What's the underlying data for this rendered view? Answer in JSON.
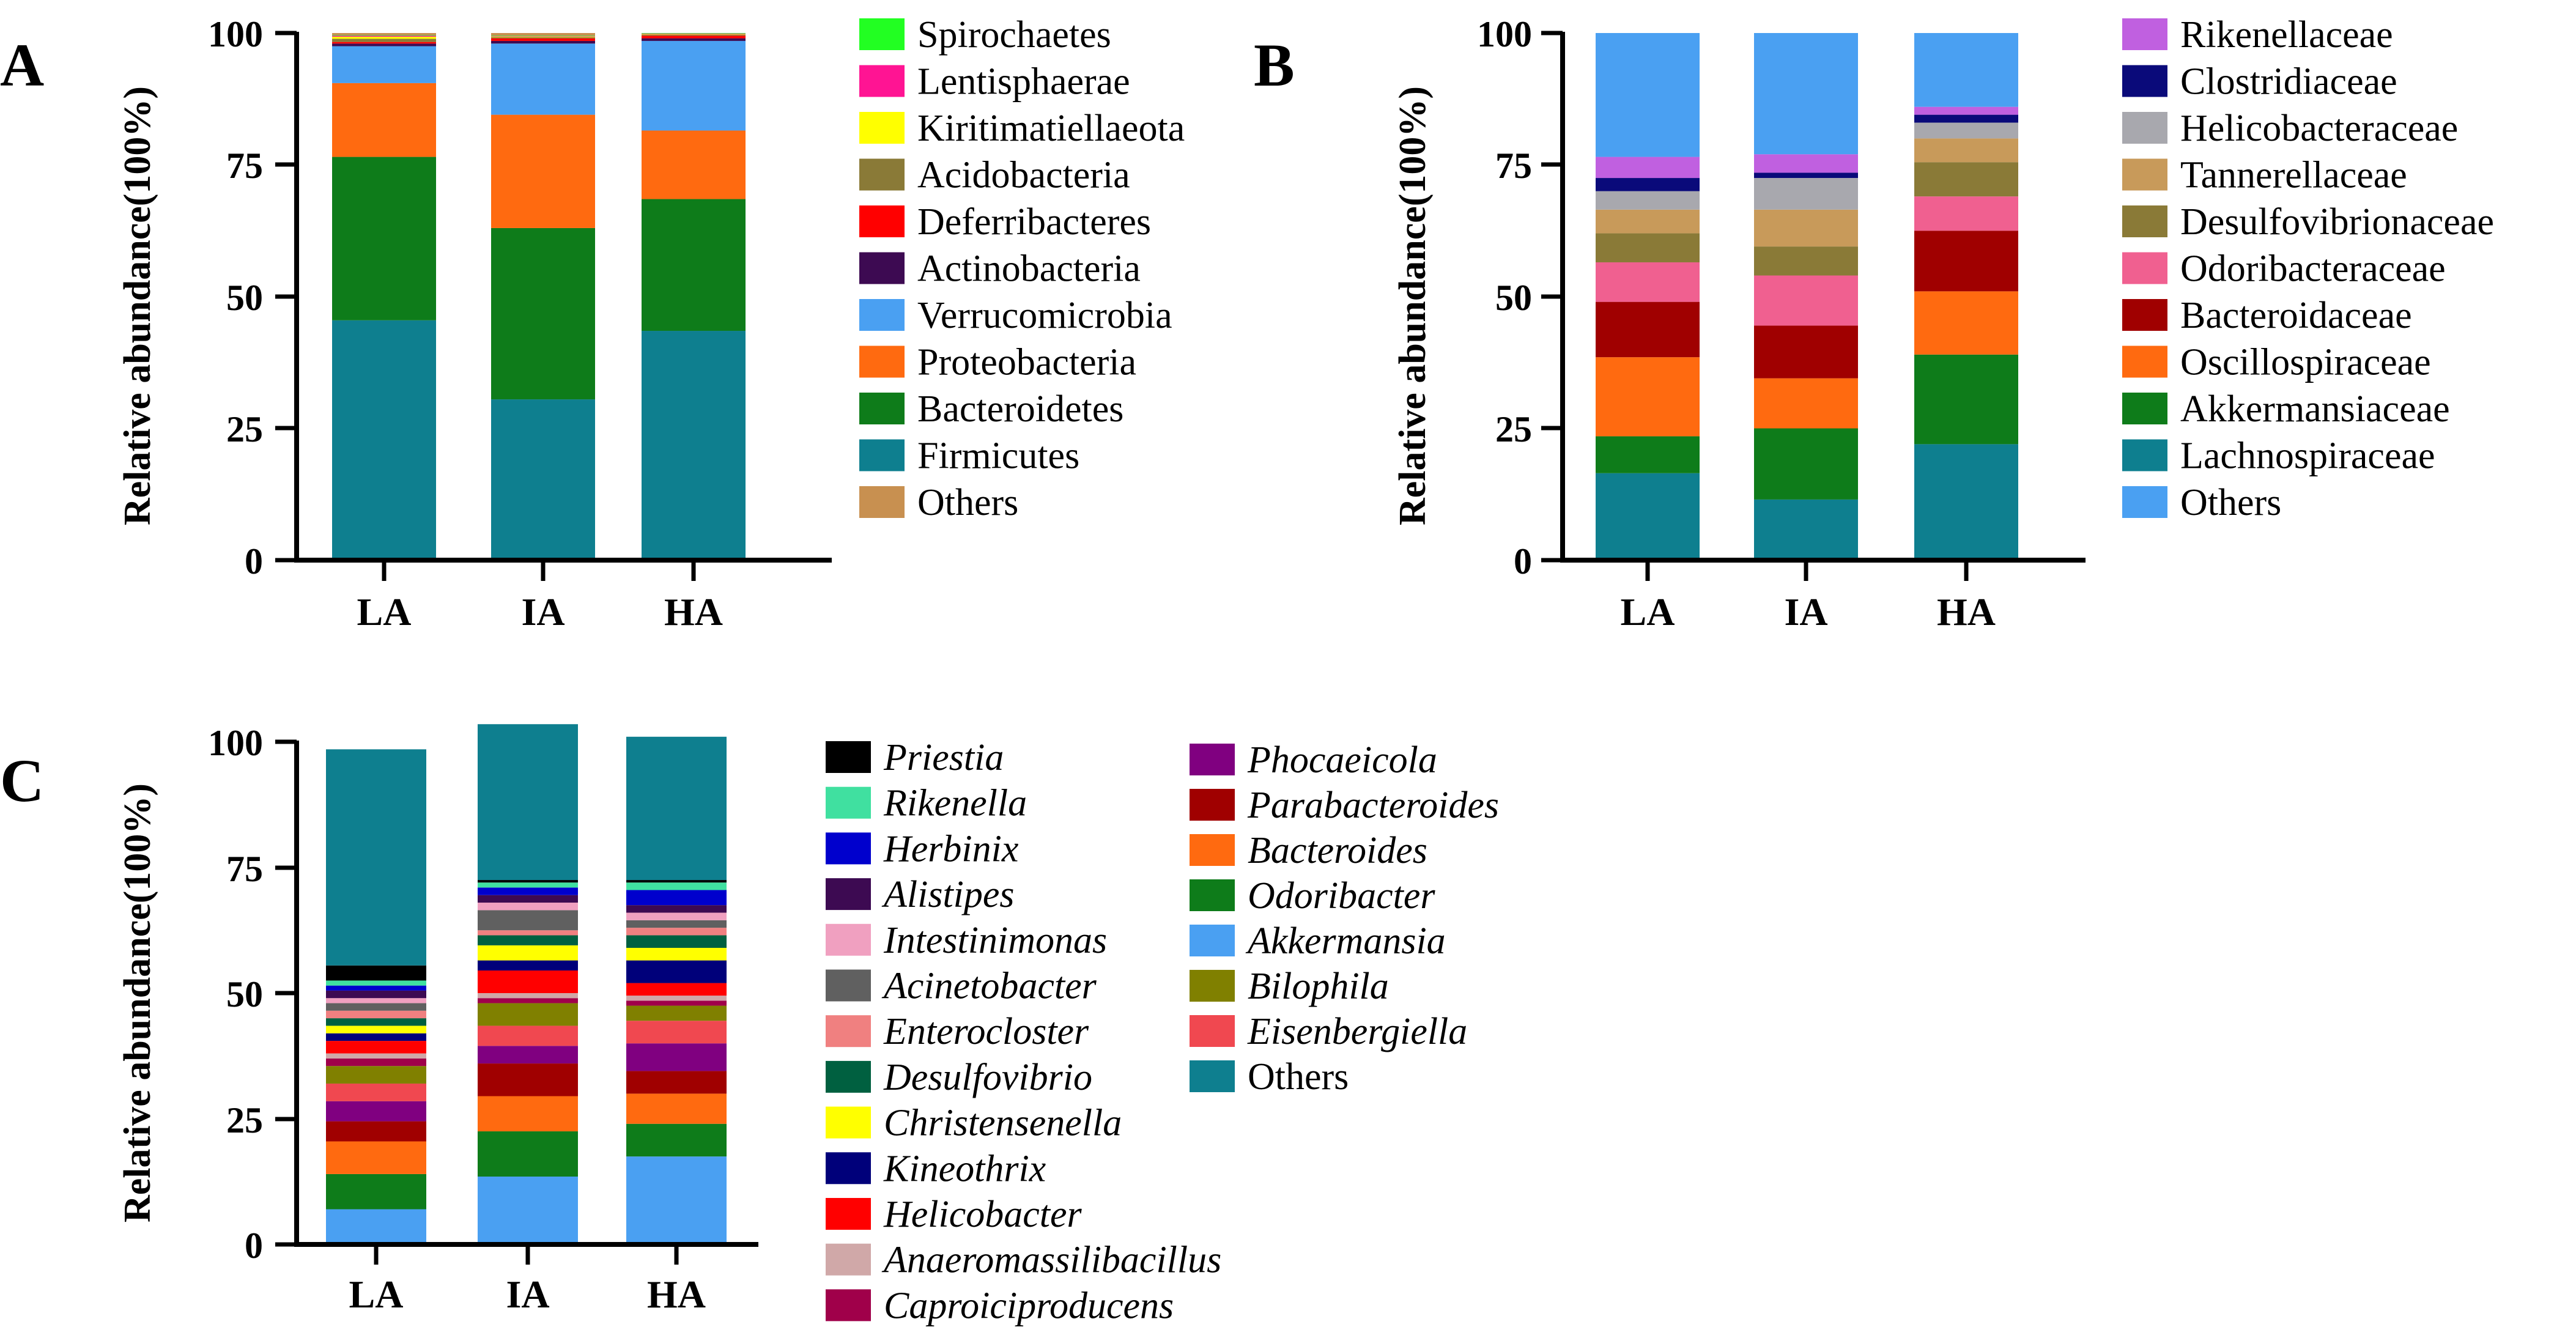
{
  "chart_data": [
    {
      "panel": "A",
      "type": "bar",
      "stacked": true,
      "categories": [
        "LA",
        "IA",
        "HA"
      ],
      "ylabel": "Relative abundance(100%)",
      "xlabel": "",
      "ylim": [
        0,
        100
      ],
      "yticks": [
        "0",
        "25",
        "50",
        "75",
        "100"
      ],
      "legend_italic": false,
      "series": [
        {
          "name": "Firmicutes",
          "color": "#0e7f8f",
          "values": [
            45.5,
            30.5,
            43.5
          ]
        },
        {
          "name": "Bacteroidetes",
          "color": "#0e7c1a",
          "values": [
            31.0,
            32.5,
            25.0
          ]
        },
        {
          "name": "Proteobacteria",
          "color": "#ff6a10",
          "values": [
            14.0,
            21.5,
            13.0
          ]
        },
        {
          "name": "Verrucomicrobia",
          "color": "#4aa0f2",
          "values": [
            7.0,
            13.5,
            17.0
          ]
        },
        {
          "name": "Actinobacteria",
          "color": "#3d0a52",
          "values": [
            0.5,
            0.5,
            0.5
          ]
        },
        {
          "name": "Deferribacteres",
          "color": "#ff0000",
          "values": [
            0.3,
            0.5,
            0.5
          ]
        },
        {
          "name": "Acidobacteria",
          "color": "#8a7a37",
          "values": [
            0.6,
            0.2,
            0.2
          ]
        },
        {
          "name": "Kiritimatiellaeota",
          "color": "#ffff00",
          "values": [
            0.4,
            0.1,
            0.1
          ]
        },
        {
          "name": "Lentisphaerae",
          "color": "#ff1493",
          "values": [
            0.2,
            0.1,
            0.1
          ]
        },
        {
          "name": "Spirochaetes",
          "color": "#22ff22",
          "values": [
            0.1,
            0.1,
            0.1
          ]
        },
        {
          "name": "Others",
          "color": "#c89050",
          "values": [
            0.4,
            0.5,
            0.0
          ]
        }
      ],
      "legend_order": [
        "Spirochaetes",
        "Lentisphaerae",
        "Kiritimatiellaeota",
        "Acidobacteria",
        "Deferribacteres",
        "Actinobacteria",
        "Verrucomicrobia",
        "Proteobacteria",
        "Bacteroidetes",
        "Firmicutes",
        "Others"
      ]
    },
    {
      "panel": "B",
      "type": "bar",
      "stacked": true,
      "categories": [
        "LA",
        "IA",
        "HA"
      ],
      "ylabel": "Relative abundance(100%)",
      "xlabel": "",
      "ylim": [
        0,
        100
      ],
      "yticks": [
        "0",
        "25",
        "50",
        "75",
        "100"
      ],
      "legend_italic": false,
      "series": [
        {
          "name": "Lachnospiraceae",
          "color": "#0e7f8f",
          "values": [
            16.5,
            11.5,
            22.0
          ]
        },
        {
          "name": "Akkermansiaceae",
          "color": "#0e7c1a",
          "values": [
            7.0,
            13.5,
            17.0
          ]
        },
        {
          "name": "Oscillospiraceae",
          "color": "#ff6a10",
          "values": [
            15.0,
            9.5,
            12.0
          ]
        },
        {
          "name": "Bacteroidaceae",
          "color": "#a00000",
          "values": [
            10.5,
            10.0,
            11.5
          ]
        },
        {
          "name": "Odoribacteraceae",
          "color": "#f06090",
          "values": [
            7.5,
            9.5,
            6.5
          ]
        },
        {
          "name": "Desulfovibrionaceae",
          "color": "#8a7a37",
          "values": [
            5.5,
            5.5,
            6.5
          ]
        },
        {
          "name": "Tannerellaceae",
          "color": "#c89a5a",
          "values": [
            4.5,
            7.0,
            4.5
          ]
        },
        {
          "name": "Helicobacteraceae",
          "color": "#a8a8ae",
          "values": [
            3.5,
            6.0,
            3.0
          ]
        },
        {
          "name": "Clostridiaceae",
          "color": "#0a0a7a",
          "values": [
            2.5,
            1.0,
            1.5
          ]
        },
        {
          "name": "Rikenellaceae",
          "color": "#c060e0",
          "values": [
            4.0,
            3.5,
            1.5
          ]
        },
        {
          "name": "Others",
          "color": "#4aa0f2",
          "values": [
            23.5,
            23.0,
            14.0
          ]
        }
      ],
      "legend_order": [
        "Rikenellaceae",
        "Clostridiaceae",
        "Helicobacteraceae",
        "Tannerellaceae",
        "Desulfovibrionaceae",
        "Odoribacteraceae",
        "Bacteroidaceae",
        "Oscillospiraceae",
        "Akkermansiaceae",
        "Lachnospiraceae",
        "Others"
      ]
    },
    {
      "panel": "C",
      "type": "bar",
      "stacked": true,
      "categories": [
        "LA",
        "IA",
        "HA"
      ],
      "ylabel": "Relative abundance(100%)",
      "xlabel": "",
      "ylim": [
        0,
        100
      ],
      "yticks": [
        "0",
        "25",
        "50",
        "75",
        "100"
      ],
      "legend_italic": true,
      "series": [
        {
          "name": "Akkermansia",
          "color": "#4aa0f2",
          "values": [
            7.0,
            13.5,
            17.5
          ]
        },
        {
          "name": "Odoribacter",
          "color": "#0e7c1a",
          "values": [
            7.0,
            9.0,
            6.5
          ]
        },
        {
          "name": "Bacteroides",
          "color": "#ff6a10",
          "values": [
            6.5,
            7.0,
            6.0
          ]
        },
        {
          "name": "Parabacteroides",
          "color": "#a00000",
          "values": [
            4.0,
            6.5,
            4.5
          ]
        },
        {
          "name": "Phocaeicola",
          "color": "#800080",
          "values": [
            4.0,
            3.5,
            5.5
          ]
        },
        {
          "name": "Eisenbergiella",
          "color": "#f04850",
          "values": [
            3.5,
            4.0,
            4.5
          ]
        },
        {
          "name": "Bilophila",
          "color": "#808000",
          "values": [
            3.5,
            4.5,
            3.0
          ]
        },
        {
          "name": "Caproiciproducens",
          "color": "#a0004a",
          "values": [
            1.5,
            1.0,
            1.0
          ]
        },
        {
          "name": "Anaeromassilibacillus",
          "color": "#d0a8a8",
          "values": [
            1.0,
            1.0,
            1.0
          ]
        },
        {
          "name": "Helicobacter",
          "color": "#ff0000",
          "values": [
            2.5,
            4.5,
            2.5
          ]
        },
        {
          "name": "Kineothrix",
          "color": "#00007a",
          "values": [
            1.5,
            2.0,
            4.5
          ]
        },
        {
          "name": "Christensenella",
          "color": "#ffff00",
          "values": [
            1.5,
            3.0,
            2.5
          ]
        },
        {
          "name": "Desulfovibrio",
          "color": "#006040",
          "values": [
            1.5,
            2.0,
            2.5
          ]
        },
        {
          "name": "Enterocloster",
          "color": "#f08080",
          "values": [
            1.5,
            1.0,
            1.5
          ]
        },
        {
          "name": "Acinetobacter",
          "color": "#606060",
          "values": [
            1.5,
            4.0,
            1.5
          ]
        },
        {
          "name": "Intestinimonas",
          "color": "#f0a0c0",
          "values": [
            1.0,
            1.5,
            1.5
          ]
        },
        {
          "name": "Alistipes",
          "color": "#3d0a52",
          "values": [
            1.5,
            1.5,
            1.5
          ]
        },
        {
          "name": "Herbinix",
          "color": "#0000cd",
          "values": [
            1.0,
            1.5,
            3.0
          ]
        },
        {
          "name": "Rikenella",
          "color": "#40e0a0",
          "values": [
            1.0,
            1.0,
            1.5
          ]
        },
        {
          "name": "Priestia",
          "color": "#000000",
          "values": [
            3.0,
            0.5,
            0.5
          ]
        },
        {
          "name": "Others",
          "color": "#0e7f8f",
          "values": [
            43.0,
            31.0,
            28.5
          ]
        }
      ],
      "legend_order": [
        "Priestia",
        "Rikenella",
        "Herbinix",
        "Alistipes",
        "Intestinimonas",
        "Acinetobacter",
        "Enterocloster",
        "Desulfovibrio",
        "Christensenella",
        "Kineothrix",
        "Helicobacter",
        "Anaeromassilibacillus",
        "Caproiciproducens",
        "Phocaeicola",
        "Parabacteroides",
        "Bacteroides",
        "Odoribacter",
        "Akkermansia",
        "Bilophila",
        "Eisenbergiella",
        "Others"
      ]
    }
  ]
}
